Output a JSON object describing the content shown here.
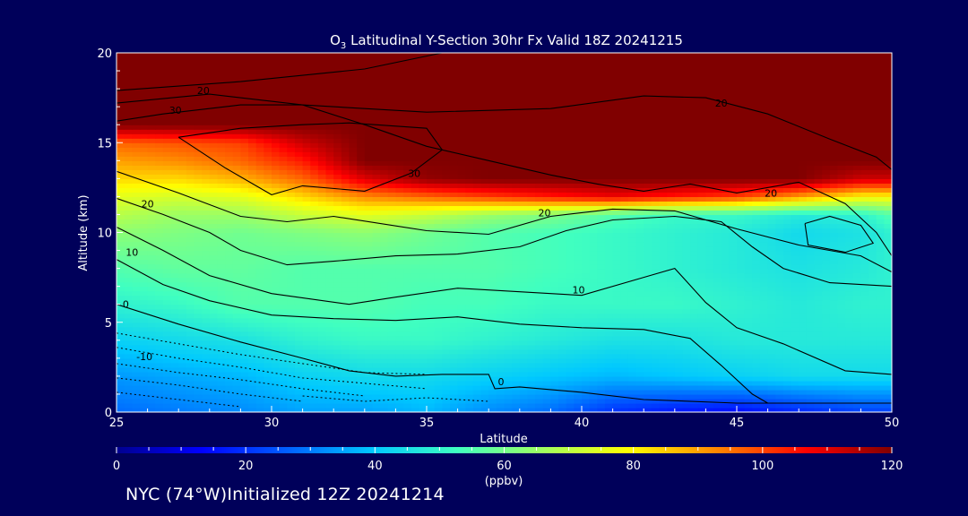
{
  "chart_data": {
    "type": "heatmap",
    "title": "Latitudinal Y-Section 30hr  Fx Valid 18Z 20241215",
    "title_species": {
      "main": "O",
      "subscript": "3"
    },
    "xlabel": "Latitude",
    "ylabel": "Altitude (km)",
    "xlim": [
      25,
      50
    ],
    "ylim": [
      0,
      20
    ],
    "x_ticks": [
      25,
      30,
      35,
      40,
      45,
      50
    ],
    "y_ticks": [
      0,
      5,
      10,
      15,
      20
    ],
    "colorbar": {
      "min": 0,
      "max": 120,
      "ticks": [
        0,
        20,
        40,
        60,
        80,
        100,
        120
      ],
      "unit": "(ppbv)",
      "palette": [
        "#00008f",
        "#0000ff",
        "#0060ff",
        "#00c8ff",
        "#40ffc0",
        "#a0ff60",
        "#ffff00",
        "#ff8000",
        "#ff0000",
        "#800000"
      ]
    },
    "field": {
      "description_levels_km": [
        0,
        2,
        4,
        6,
        8,
        10,
        11,
        12,
        13,
        14,
        15,
        16,
        20
      ],
      "latitudes": [
        25,
        27,
        29,
        31,
        33,
        35,
        37,
        39,
        41,
        43,
        45,
        47,
        49,
        50
      ],
      "values": [
        [
          28,
          30,
          32,
          35,
          35,
          38,
          32,
          28,
          20,
          16,
          14,
          18,
          22,
          22
        ],
        [
          34,
          36,
          38,
          42,
          44,
          44,
          42,
          40,
          38,
          40,
          42,
          44,
          44,
          44
        ],
        [
          42,
          44,
          46,
          50,
          52,
          52,
          50,
          48,
          46,
          46,
          48,
          48,
          48,
          48
        ],
        [
          50,
          52,
          56,
          56,
          56,
          54,
          54,
          52,
          52,
          52,
          50,
          48,
          50,
          50
        ],
        [
          56,
          58,
          58,
          56,
          56,
          56,
          56,
          54,
          52,
          50,
          48,
          46,
          48,
          50
        ],
        [
          64,
          62,
          60,
          62,
          64,
          60,
          56,
          54,
          52,
          50,
          48,
          44,
          46,
          50
        ],
        [
          70,
          66,
          66,
          72,
          76,
          72,
          66,
          62,
          56,
          52,
          52,
          48,
          50,
          56
        ],
        [
          76,
          74,
          76,
          84,
          92,
          96,
          100,
          104,
          108,
          104,
          100,
          90,
          80,
          80
        ],
        [
          84,
          84,
          88,
          96,
          110,
          118,
          120,
          120,
          120,
          120,
          120,
          120,
          112,
          112
        ],
        [
          90,
          92,
          96,
          104,
          120,
          120,
          120,
          120,
          120,
          120,
          120,
          120,
          120,
          120
        ],
        [
          96,
          98,
          100,
          112,
          120,
          120,
          120,
          120,
          120,
          120,
          120,
          120,
          120,
          120
        ],
        [
          120,
          120,
          120,
          120,
          120,
          120,
          120,
          120,
          120,
          120,
          120,
          120,
          120,
          120
        ],
        [
          120,
          120,
          120,
          120,
          120,
          120,
          120,
          120,
          120,
          120,
          120,
          120,
          120,
          120
        ]
      ]
    },
    "contour_labels": [
      {
        "text": "20",
        "lat": 27.8,
        "alt": 17.7
      },
      {
        "text": "30",
        "lat": 26.9,
        "alt": 16.6
      },
      {
        "text": "20",
        "lat": 44.5,
        "alt": 17.0
      },
      {
        "text": "30",
        "lat": 34.6,
        "alt": 13.1
      },
      {
        "text": "20",
        "lat": 26.0,
        "alt": 11.4
      },
      {
        "text": "20",
        "lat": 38.8,
        "alt": 10.9
      },
      {
        "text": "20",
        "lat": 46.1,
        "alt": 12.0
      },
      {
        "text": "10",
        "lat": 25.5,
        "alt": 8.7
      },
      {
        "text": "10",
        "lat": 39.9,
        "alt": 6.6
      },
      {
        "text": "0",
        "lat": 25.3,
        "alt": 5.8
      },
      {
        "text": "-10",
        "lat": 25.9,
        "alt": 2.9
      },
      {
        "text": "0",
        "lat": 37.4,
        "alt": 1.5
      }
    ]
  },
  "footer": "NYC (74°W)Initialized 12Z 20241214"
}
